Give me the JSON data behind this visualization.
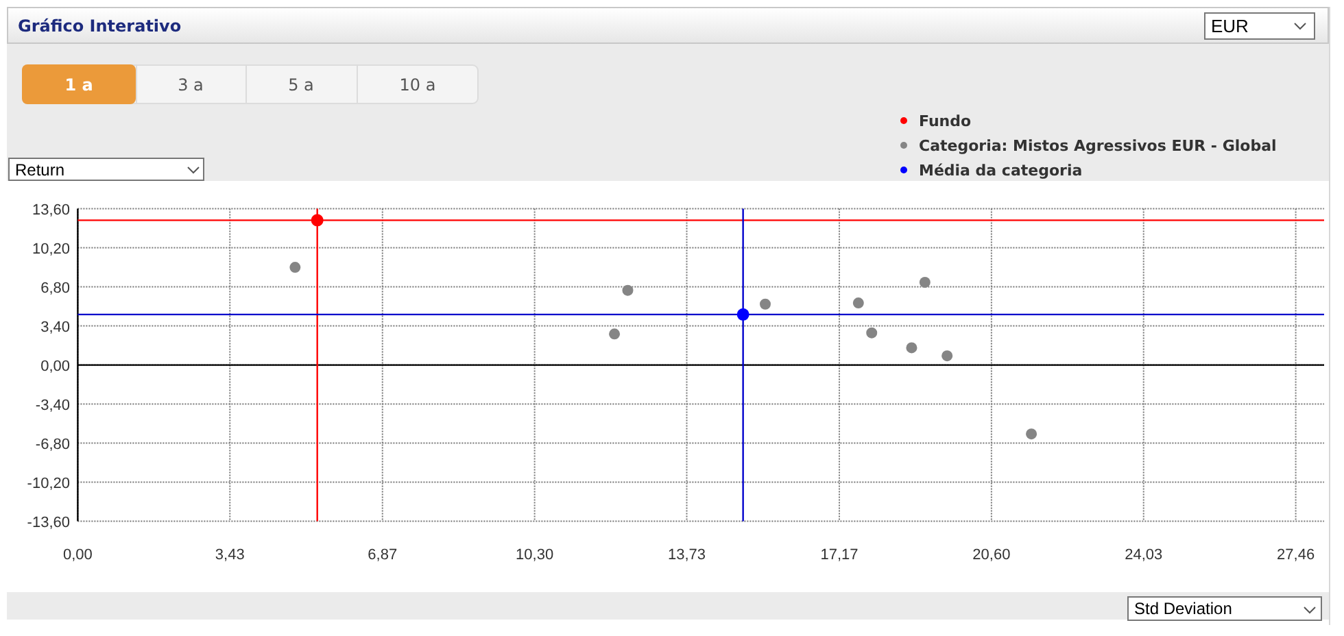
{
  "chart_data": {
    "type": "scatter",
    "title": "Gráfico Interativo",
    "xlabel": "Std Deviation",
    "ylabel": "Return",
    "annotations": [
      "EUR",
      "1 a",
      "3 a",
      "5 a",
      "10 a"
    ],
    "series": [
      {
        "name": "Fundo",
        "color": "#ff0000",
        "x": [
          5.4
        ],
        "values": [
          12.6
        ]
      },
      {
        "name": "Categoria: Mistos Agressivos EUR - Global",
        "color": "#858585",
        "x": [
          4.9,
          12.1,
          12.4,
          15.5,
          17.6,
          17.9,
          19.1,
          18.8,
          19.6,
          21.5
        ],
        "values": [
          8.5,
          2.7,
          6.5,
          5.3,
          5.4,
          2.8,
          7.2,
          1.5,
          0.8,
          -6.0
        ]
      },
      {
        "name": "Média da categoria",
        "color": "#0000ff",
        "x": [
          15.0
        ],
        "values": [
          4.4
        ]
      }
    ],
    "xlim": [
      0,
      28.1
    ],
    "ylim": [
      -13.6,
      13.6
    ],
    "xticks": [
      {
        "value": 0,
        "label": "0,00"
      },
      {
        "value": 3.43,
        "label": "3,43"
      },
      {
        "value": 6.87,
        "label": "6,87"
      },
      {
        "value": 10.3,
        "label": "10,30"
      },
      {
        "value": 13.73,
        "label": "13,73"
      },
      {
        "value": 17.17,
        "label": "17,17"
      },
      {
        "value": 20.6,
        "label": "20,60"
      },
      {
        "value": 24.03,
        "label": "24,03"
      },
      {
        "value": 27.46,
        "label": "27,46"
      }
    ],
    "yticks": [
      {
        "value": -13.6,
        "label": "-13,60"
      },
      {
        "value": -10.2,
        "label": "-10,20"
      },
      {
        "value": -6.8,
        "label": "-6,80"
      },
      {
        "value": -3.4,
        "label": "-3,40"
      },
      {
        "value": 0,
        "label": "0,00"
      },
      {
        "value": 3.4,
        "label": "3,40"
      },
      {
        "value": 6.8,
        "label": "6,80"
      },
      {
        "value": 10.2,
        "label": "10,20"
      },
      {
        "value": 13.6,
        "label": "13,60"
      }
    ],
    "ref_lines": [
      {
        "axis": "y",
        "value": 0,
        "color": "#000000"
      },
      {
        "axis": "y",
        "value": 12.6,
        "color": "#ff0000"
      },
      {
        "axis": "x",
        "value": 5.4,
        "color": "#ff0000"
      },
      {
        "axis": "y",
        "value": 4.4,
        "color": "#0000cc"
      },
      {
        "axis": "x",
        "value": 15.0,
        "color": "#0000cc"
      }
    ],
    "grid": true,
    "legend": "top right",
    "marker": "circle"
  }
}
